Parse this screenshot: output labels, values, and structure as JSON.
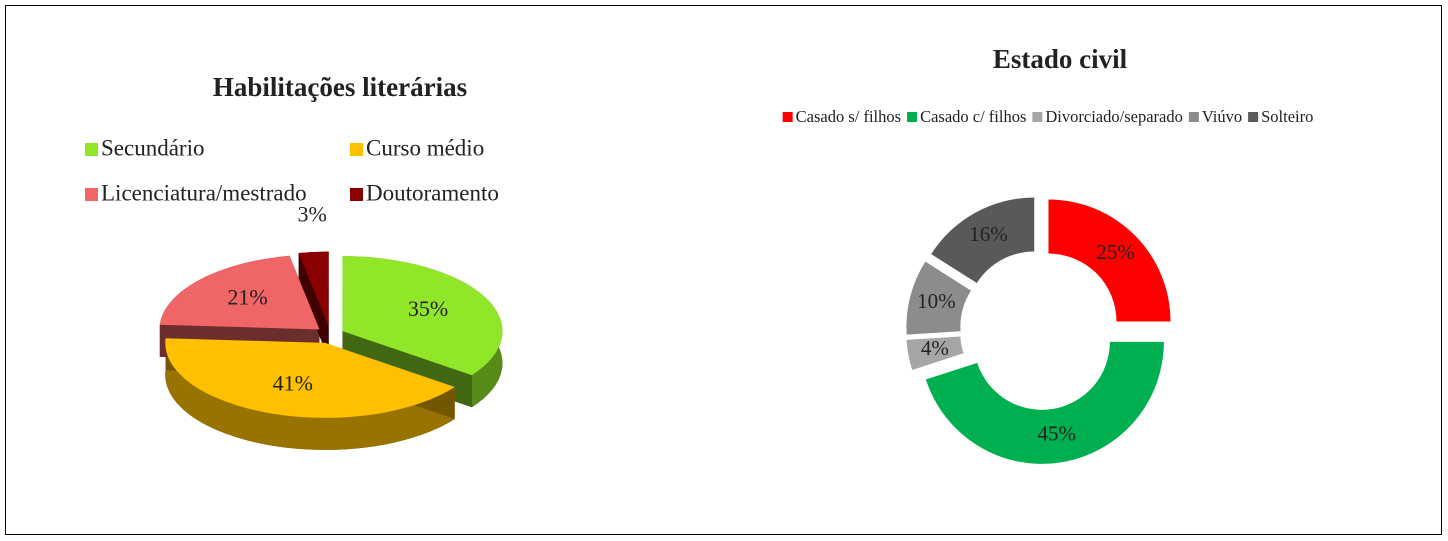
{
  "chart_data": [
    {
      "type": "pie3d",
      "title": "Habilitações literárias",
      "categories": [
        "Secundário",
        "Curso médio",
        "Licenciatura/mestrado",
        "Doutoramento"
      ],
      "values": [
        35,
        41,
        21,
        3
      ],
      "value_labels": [
        "35%",
        "41%",
        "21%",
        "3%"
      ],
      "colors": [
        "#92e62a",
        "#ffc000",
        "#f06565",
        "#8b0000"
      ]
    },
    {
      "type": "doughnut",
      "title": "Estado civil",
      "categories": [
        "Casado s/ filhos",
        "Casado c/ filhos",
        "Divorciado/separado",
        "Viúvo",
        "Solteiro"
      ],
      "values": [
        25,
        45,
        4,
        10,
        16
      ],
      "value_labels": [
        "25%",
        "45%",
        "4%",
        "10%",
        "16%"
      ],
      "colors": [
        "#ff0000",
        "#00b050",
        "#a6a6a6",
        "#8c8c8c",
        "#595959"
      ]
    }
  ]
}
